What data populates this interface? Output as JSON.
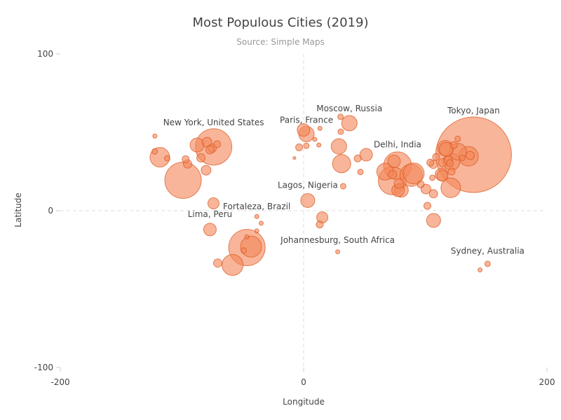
{
  "chart_data": {
    "type": "scatter",
    "title": "Most Populous Cities (2019)",
    "subtitle": "Source: Simple Maps",
    "xlabel": "Longitude",
    "ylabel": "Latitude",
    "xlim": [
      -200,
      200
    ],
    "ylim": [
      -100,
      100
    ],
    "xticks": [
      -200,
      0,
      200
    ],
    "yticks": [
      100,
      0,
      -100
    ],
    "grid": false,
    "zero_lines": true,
    "color": "#f4875a",
    "points": [
      {
        "x": 139.7,
        "y": 35.7,
        "r": 54
      },
      {
        "x": -99.1,
        "y": 19.4,
        "r": 26
      },
      {
        "x": -74.0,
        "y": 40.7,
        "r": 26
      },
      {
        "x": -46.6,
        "y": -23.5,
        "r": 26
      },
      {
        "x": 77.2,
        "y": 28.6,
        "r": 20
      },
      {
        "x": 72.9,
        "y": 19.1,
        "r": 20
      },
      {
        "x": 88.4,
        "y": 22.6,
        "r": 16
      },
      {
        "x": 90.4,
        "y": 23.8,
        "r": 15
      },
      {
        "x": 121.5,
        "y": 31.2,
        "r": 12
      },
      {
        "x": 116.4,
        "y": 39.9,
        "r": 11
      },
      {
        "x": 135.5,
        "y": 34.7,
        "r": 14
      },
      {
        "x": 126.9,
        "y": 37.6,
        "r": 12
      },
      {
        "x": 120.9,
        "y": 14.6,
        "r": 14
      },
      {
        "x": 106.8,
        "y": -6.2,
        "r": 10
      },
      {
        "x": -118.2,
        "y": 34.1,
        "r": 14
      },
      {
        "x": -58.4,
        "y": -34.6,
        "r": 15
      },
      {
        "x": -43.2,
        "y": -22.9,
        "r": 15
      },
      {
        "x": 37.6,
        "y": 55.8,
        "r": 11
      },
      {
        "x": 31.2,
        "y": 30.0,
        "r": 13
      },
      {
        "x": 29.0,
        "y": 41.0,
        "r": 11
      },
      {
        "x": 2.35,
        "y": 48.9,
        "r": 11
      },
      {
        "x": 3.4,
        "y": 6.5,
        "r": 10
      },
      {
        "x": -77.0,
        "y": -12.0,
        "r": 9
      },
      {
        "x": -87.6,
        "y": 41.9,
        "r": 10
      },
      {
        "x": -79.4,
        "y": 43.7,
        "r": 7
      },
      {
        "x": 51.4,
        "y": 35.7,
        "r": 9
      },
      {
        "x": 80.3,
        "y": 13.1,
        "r": 10
      },
      {
        "x": 77.6,
        "y": 13.0,
        "r": 9
      },
      {
        "x": 114.1,
        "y": 22.4,
        "r": 8
      },
      {
        "x": 113.3,
        "y": 23.1,
        "r": 9
      },
      {
        "x": 106.6,
        "y": 29.6,
        "r": 6
      },
      {
        "x": 117.2,
        "y": 39.1,
        "r": 10
      },
      {
        "x": 100.5,
        "y": 13.8,
        "r": 7
      },
      {
        "x": 101.7,
        "y": 3.1,
        "r": 5
      },
      {
        "x": -74.1,
        "y": 4.7,
        "r": 8
      },
      {
        "x": -95.4,
        "y": 29.8,
        "r": 6
      },
      {
        "x": -97.0,
        "y": 32.8,
        "r": 5
      },
      {
        "x": -84.4,
        "y": 33.7,
        "r": 6
      },
      {
        "x": -80.2,
        "y": 25.8,
        "r": 7
      },
      {
        "x": -75.2,
        "y": 39.9,
        "r": 6
      },
      {
        "x": -71.1,
        "y": 42.4,
        "r": 5
      },
      {
        "x": -77.0,
        "y": 38.9,
        "r": 6
      },
      {
        "x": -122.4,
        "y": 37.8,
        "r": 4
      },
      {
        "x": -122.3,
        "y": 47.6,
        "r": 3
      },
      {
        "x": -112.1,
        "y": 33.4,
        "r": 4
      },
      {
        "x": -46.6,
        "y": -16.7,
        "r": 3
      },
      {
        "x": -38.5,
        "y": -12.9,
        "r": 3
      },
      {
        "x": -38.5,
        "y": -3.7,
        "r": 3
      },
      {
        "x": -34.9,
        "y": -8.0,
        "r": 3
      },
      {
        "x": -49.3,
        "y": -25.4,
        "r": 4
      },
      {
        "x": -70.6,
        "y": -33.4,
        "r": 6
      },
      {
        "x": -3.7,
        "y": 40.4,
        "r": 5
      },
      {
        "x": -0.1,
        "y": 51.5,
        "r": 9
      },
      {
        "x": 2.2,
        "y": 41.4,
        "r": 4
      },
      {
        "x": 12.5,
        "y": 41.9,
        "r": 3
      },
      {
        "x": 9.2,
        "y": 45.5,
        "r": 3
      },
      {
        "x": 13.4,
        "y": 52.5,
        "r": 3
      },
      {
        "x": 30.5,
        "y": 50.4,
        "r": 4
      },
      {
        "x": 30.3,
        "y": 59.9,
        "r": 4
      },
      {
        "x": 32.5,
        "y": 15.6,
        "r": 4
      },
      {
        "x": 15.3,
        "y": -4.3,
        "r": 8
      },
      {
        "x": 13.2,
        "y": -8.8,
        "r": 5
      },
      {
        "x": 28.0,
        "y": -26.2,
        "r": 3
      },
      {
        "x": -7.6,
        "y": 33.6,
        "r": 2
      },
      {
        "x": 44.4,
        "y": 33.3,
        "r": 5
      },
      {
        "x": 46.7,
        "y": 24.7,
        "r": 4
      },
      {
        "x": 67.0,
        "y": 24.9,
        "r": 12
      },
      {
        "x": 74.3,
        "y": 31.5,
        "r": 9
      },
      {
        "x": 78.5,
        "y": 17.4,
        "r": 7
      },
      {
        "x": 73.0,
        "y": 23.0,
        "r": 6
      },
      {
        "x": 96.2,
        "y": 16.8,
        "r": 5
      },
      {
        "x": 106.7,
        "y": 10.8,
        "r": 6
      },
      {
        "x": 105.8,
        "y": 21.0,
        "r": 4
      },
      {
        "x": 104.1,
        "y": 30.7,
        "r": 5
      },
      {
        "x": 108.9,
        "y": 34.3,
        "r": 5
      },
      {
        "x": 114.3,
        "y": 30.6,
        "r": 6
      },
      {
        "x": 118.8,
        "y": 32.1,
        "r": 6
      },
      {
        "x": 120.2,
        "y": 30.3,
        "r": 5
      },
      {
        "x": 123.4,
        "y": 41.8,
        "r": 5
      },
      {
        "x": 126.6,
        "y": 45.8,
        "r": 4
      },
      {
        "x": 121.6,
        "y": 25.0,
        "r": 5
      },
      {
        "x": 130.4,
        "y": 33.6,
        "r": 4
      },
      {
        "x": 136.9,
        "y": 35.2,
        "r": 6
      },
      {
        "x": 151.2,
        "y": -33.9,
        "r": 4
      },
      {
        "x": 145.0,
        "y": -37.8,
        "r": 3
      }
    ],
    "annotations": [
      {
        "text": "Tokyo, Japan",
        "x": 139.7,
        "y": 62.0
      },
      {
        "text": "New York, United States",
        "x": -74.0,
        "y": 54.5
      },
      {
        "text": "Moscow, Russia",
        "x": 37.6,
        "y": 63.5
      },
      {
        "text": "Paris, France",
        "x": 2.35,
        "y": 56.0
      },
      {
        "text": "Delhi, India",
        "x": 77.2,
        "y": 40.5
      },
      {
        "text": "Lagos, Nigeria",
        "x": 3.4,
        "y": 14.5
      },
      {
        "text": "Fortaleza, Brazil",
        "x": -38.5,
        "y": 0.8
      },
      {
        "text": "Lima, Peru",
        "x": -77.0,
        "y": -4.0
      },
      {
        "text": "Johannesburg, South Africa",
        "x": 28.0,
        "y": -20.5
      },
      {
        "text": "Sydney, Australia",
        "x": 151.2,
        "y": -27.5
      }
    ]
  }
}
